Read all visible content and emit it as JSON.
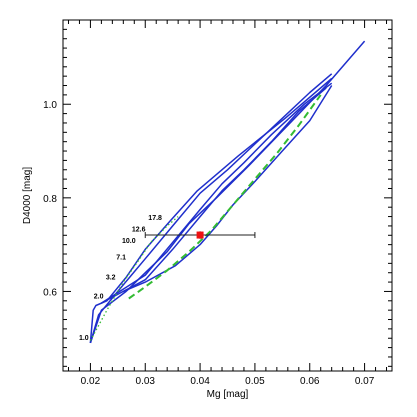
{
  "chart_data": {
    "type": "line",
    "title": "",
    "xlabel": "Mg [mag]",
    "ylabel": "D4000 [mag]",
    "xlim": [
      0.015,
      0.075
    ],
    "ylim": [
      0.43,
      1.18
    ],
    "xticks": [
      0.02,
      0.03,
      0.04,
      0.05,
      0.06,
      0.07
    ],
    "xtick_labels": [
      "0.02",
      "0.03",
      "0.04",
      "0.05",
      "0.06",
      "0.07"
    ],
    "yticks": [
      0.6,
      0.8,
      1.0
    ],
    "ytick_labels": [
      "0.6",
      "0.8",
      "1.0"
    ],
    "grid": false,
    "legend": "none",
    "colors": {
      "model": "#1f2fcc",
      "dashed": "#33bb33",
      "dotted": "#33bb33",
      "point": "#ee1111",
      "errorbar": "#222222"
    },
    "series": [
      {
        "style": "solid",
        "color": "#1f2fcc",
        "x": [
          0.02,
          0.0205,
          0.021,
          0.023,
          0.0265,
          0.03,
          0.0345,
          0.0395,
          0.047,
          0.0555,
          0.064
        ],
        "y": [
          0.49,
          0.56,
          0.57,
          0.58,
          0.63,
          0.69,
          0.75,
          0.815,
          0.89,
          0.97,
          1.055
        ]
      },
      {
        "style": "solid",
        "color": "#1f2fcc",
        "x": [
          0.02,
          0.0215,
          0.025,
          0.03,
          0.035,
          0.04,
          0.045,
          0.05,
          0.055,
          0.06,
          0.064
        ],
        "y": [
          0.49,
          0.55,
          0.6,
          0.67,
          0.74,
          0.81,
          0.86,
          0.915,
          0.97,
          1.025,
          1.065
        ]
      },
      {
        "style": "solid",
        "color": "#1f2fcc",
        "x": [
          0.02,
          0.022,
          0.0265,
          0.03,
          0.034,
          0.038,
          0.043,
          0.049,
          0.056,
          0.063,
          0.07
        ],
        "y": [
          0.49,
          0.56,
          0.6,
          0.64,
          0.685,
          0.745,
          0.8,
          0.87,
          0.955,
          1.04,
          1.135
        ]
      },
      {
        "style": "solid",
        "color": "#1f2fcc",
        "x": [
          0.022,
          0.026,
          0.03,
          0.035,
          0.04,
          0.044,
          0.048,
          0.053,
          0.059,
          0.064
        ],
        "y": [
          0.575,
          0.605,
          0.635,
          0.705,
          0.775,
          0.83,
          0.875,
          0.935,
          1.0,
          1.045
        ]
      },
      {
        "style": "solid",
        "color": "#1f2fcc",
        "x": [
          0.022,
          0.026,
          0.03,
          0.035,
          0.04,
          0.044,
          0.048,
          0.053,
          0.058,
          0.063
        ],
        "y": [
          0.575,
          0.6,
          0.625,
          0.69,
          0.76,
          0.815,
          0.86,
          0.92,
          0.985,
          1.035
        ]
      },
      {
        "style": "solid",
        "color": "#1f2fcc",
        "x": [
          0.026,
          0.03,
          0.0355,
          0.04,
          0.043,
          0.046,
          0.05,
          0.055,
          0.06,
          0.064
        ],
        "y": [
          0.6,
          0.62,
          0.655,
          0.7,
          0.74,
          0.785,
          0.835,
          0.9,
          0.965,
          1.04
        ]
      },
      {
        "style": "dashed",
        "color": "#33bb33",
        "x": [
          0.027,
          0.03,
          0.034,
          0.038,
          0.042,
          0.046,
          0.05,
          0.054,
          0.058,
          0.062
        ],
        "y": [
          0.585,
          0.61,
          0.645,
          0.685,
          0.73,
          0.785,
          0.84,
          0.895,
          0.955,
          1.02
        ]
      },
      {
        "style": "dotted",
        "color": "#33bb33",
        "x": [
          0.02,
          0.023,
          0.026,
          0.029,
          0.031,
          0.034,
          0.036
        ],
        "y": [
          0.495,
          0.56,
          0.62,
          0.67,
          0.705,
          0.74,
          0.76
        ]
      }
    ],
    "age_labels": [
      {
        "text": "1.0",
        "x": 0.0188,
        "y": 0.496
      },
      {
        "text": "2.0",
        "x": 0.0215,
        "y": 0.585
      },
      {
        "text": "3.2",
        "x": 0.0237,
        "y": 0.625
      },
      {
        "text": "7.1",
        "x": 0.0256,
        "y": 0.668
      },
      {
        "text": "10.0",
        "x": 0.027,
        "y": 0.703
      },
      {
        "text": "12.6",
        "x": 0.0288,
        "y": 0.728
      },
      {
        "text": "17.8",
        "x": 0.0318,
        "y": 0.753
      }
    ],
    "measurement": {
      "x": 0.04,
      "y": 0.7205,
      "xerr": 0.01,
      "yerr": 0.008
    }
  }
}
